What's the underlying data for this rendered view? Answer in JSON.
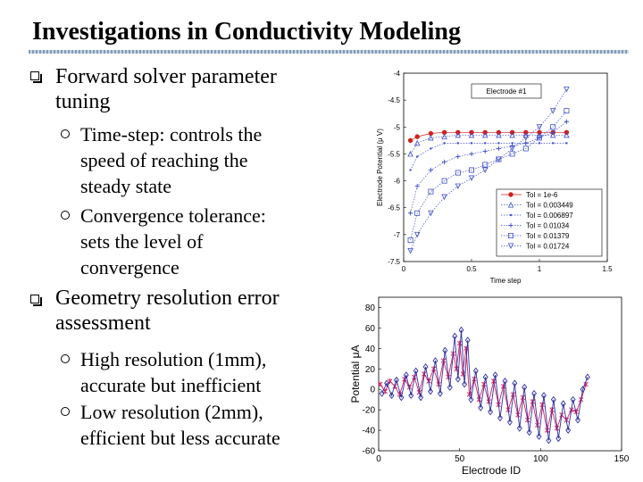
{
  "slide": {
    "title": "Investigations in Conductivity Modeling",
    "bullets": [
      {
        "lines": [
          "Forward solver parameter",
          "tuning"
        ],
        "subs": [
          {
            "lines": [
              "Time-step: controls the",
              "speed of reaching the",
              "steady state"
            ]
          },
          {
            "lines": [
              "Convergence tolerance:",
              "sets the level of",
              "convergence"
            ]
          }
        ]
      },
      {
        "lines": [
          "Geometry resolution error",
          "assessment"
        ],
        "subs": [
          {
            "lines": [
              "High resolution (1mm),",
              "accurate but inefficient"
            ]
          },
          {
            "lines": [
              "Low resolution (2mm),",
              "efficient but less accurate"
            ]
          }
        ]
      }
    ]
  },
  "chart_data": [
    {
      "type": "line",
      "annotation": "Electrode #1",
      "xlabel": "Time step",
      "ylabel": "Electrode Potential (μ V)",
      "xlim": [
        0,
        1.5
      ],
      "ylim": [
        -7.5,
        -4
      ],
      "xticks": [
        0,
        0.5,
        1,
        1.5
      ],
      "xtick_labels": [
        "0",
        "0.5",
        "1",
        "1.5"
      ],
      "yticks": [
        -4,
        -4.5,
        -5,
        -5.5,
        -6,
        -6.5,
        -7,
        -7.5
      ],
      "ytick_labels": [
        "-4",
        "-4.5",
        "-5",
        "-5.5",
        "-6",
        "-6.5",
        "-7",
        "-7.5"
      ],
      "legend_position": "bottom-right",
      "series": [
        {
          "name": "Tol = 1e-6",
          "color": "#d02020",
          "marker": "circle",
          "x": [
            0.05,
            0.1,
            0.2,
            0.3,
            0.4,
            0.5,
            0.6,
            0.7,
            0.8,
            0.9,
            1.0,
            1.1,
            1.2
          ],
          "y": [
            -5.25,
            -5.18,
            -5.12,
            -5.1,
            -5.1,
            -5.1,
            -5.1,
            -5.1,
            -5.1,
            -5.1,
            -5.1,
            -5.1,
            -5.1
          ]
        },
        {
          "name": "Tol = 0.003449",
          "color": "#4050c8",
          "marker": "triangle-up",
          "x": [
            0.05,
            0.1,
            0.2,
            0.3,
            0.4,
            0.5,
            0.6,
            0.7,
            0.8,
            0.9,
            1.0,
            1.1,
            1.2
          ],
          "y": [
            -5.5,
            -5.3,
            -5.2,
            -5.18,
            -5.15,
            -5.15,
            -5.15,
            -5.15,
            -5.15,
            -5.15,
            -5.15,
            -5.15,
            -5.15
          ]
        },
        {
          "name": "Tol = 0.006897",
          "color": "#4050c8",
          "marker": "dot",
          "x": [
            0.05,
            0.1,
            0.2,
            0.3,
            0.4,
            0.5,
            0.6,
            0.7,
            0.8,
            0.9,
            1.0,
            1.1,
            1.2
          ],
          "y": [
            -5.8,
            -5.55,
            -5.4,
            -5.3,
            -5.3,
            -5.3,
            -5.3,
            -5.3,
            -5.3,
            -5.3,
            -5.3,
            -5.3,
            -5.3
          ]
        },
        {
          "name": "Tol = 0.01034",
          "color": "#4050c8",
          "marker": "plus",
          "x": [
            0.05,
            0.1,
            0.2,
            0.3,
            0.4,
            0.5,
            0.6,
            0.7,
            0.8,
            0.9,
            1.0,
            1.1,
            1.2
          ],
          "y": [
            -6.6,
            -6.1,
            -5.8,
            -5.65,
            -5.55,
            -5.5,
            -5.45,
            -5.4,
            -5.35,
            -5.3,
            -5.2,
            -5.1,
            -4.9
          ]
        },
        {
          "name": "Tol = 0.01379",
          "color": "#4050c8",
          "marker": "square",
          "x": [
            0.05,
            0.1,
            0.2,
            0.3,
            0.4,
            0.5,
            0.6,
            0.7,
            0.8,
            0.9,
            1.0,
            1.1,
            1.2
          ],
          "y": [
            -7.1,
            -6.6,
            -6.2,
            -6.0,
            -5.85,
            -5.8,
            -5.7,
            -5.6,
            -5.5,
            -5.4,
            -5.2,
            -5.0,
            -4.7
          ]
        },
        {
          "name": "Tol = 0.01724",
          "color": "#4050c8",
          "marker": "triangle-down",
          "x": [
            0.05,
            0.1,
            0.2,
            0.3,
            0.4,
            0.5,
            0.6,
            0.7,
            0.8,
            0.9,
            1.0,
            1.1,
            1.2
          ],
          "y": [
            -7.3,
            -7.0,
            -6.6,
            -6.3,
            -6.1,
            -5.95,
            -5.8,
            -5.6,
            -5.4,
            -5.2,
            -5.0,
            -4.7,
            -4.3
          ]
        }
      ]
    },
    {
      "type": "line",
      "xlabel": "Electrode ID",
      "ylabel": "Potential μA",
      "xlim": [
        0,
        150
      ],
      "ylim": [
        -60,
        90
      ],
      "xticks": [
        0,
        50,
        100,
        150
      ],
      "xtick_labels": [
        "0",
        "50",
        "100",
        "150"
      ],
      "yticks": [
        -60,
        -40,
        -20,
        0,
        20,
        40,
        60,
        80
      ],
      "ytick_labels": [
        "-60",
        "-40",
        "-20",
        "0",
        "20",
        "40",
        "60",
        "80"
      ],
      "series": [
        {
          "color": "#d02060",
          "marker": "star",
          "x": [
            1,
            4,
            7,
            10,
            13,
            16,
            19,
            22,
            25,
            28,
            31,
            34,
            37,
            40,
            43,
            46,
            48,
            50,
            52,
            54,
            56,
            59,
            62,
            65,
            68,
            71,
            74,
            77,
            80,
            83,
            86,
            89,
            92,
            95,
            98,
            101,
            104,
            107,
            110,
            113,
            116,
            119,
            122,
            125,
            128
          ],
          "y": [
            5,
            -2,
            8,
            3,
            -5,
            10,
            2,
            12,
            -3,
            15,
            8,
            20,
            5,
            28,
            12,
            35,
            20,
            45,
            15,
            40,
            -5,
            10,
            -10,
            5,
            -12,
            8,
            -15,
            3,
            -20,
            -5,
            -25,
            -8,
            -30,
            -12,
            -35,
            -15,
            -40,
            -20,
            -38,
            -25,
            -30,
            -20,
            -22,
            -10,
            5
          ]
        },
        {
          "color": "#3030a0",
          "marker": "diamond",
          "x": [
            2,
            5,
            8,
            11,
            14,
            17,
            20,
            23,
            26,
            29,
            32,
            35,
            38,
            41,
            44,
            47,
            49,
            51,
            53,
            55,
            57,
            60,
            63,
            66,
            69,
            72,
            75,
            78,
            81,
            84,
            87,
            90,
            93,
            96,
            99,
            102,
            105,
            108,
            111,
            114,
            117,
            120,
            123,
            126,
            129
          ],
          "y": [
            -4,
            6,
            -6,
            9,
            -8,
            14,
            -6,
            18,
            -8,
            22,
            -2,
            28,
            -4,
            38,
            2,
            52,
            10,
            58,
            5,
            48,
            -10,
            18,
            -18,
            12,
            -22,
            14,
            -28,
            8,
            -32,
            6,
            -38,
            2,
            -42,
            -4,
            -46,
            -6,
            -50,
            -10,
            -48,
            -14,
            -40,
            -10,
            -30,
            0,
            12
          ]
        }
      ]
    }
  ]
}
